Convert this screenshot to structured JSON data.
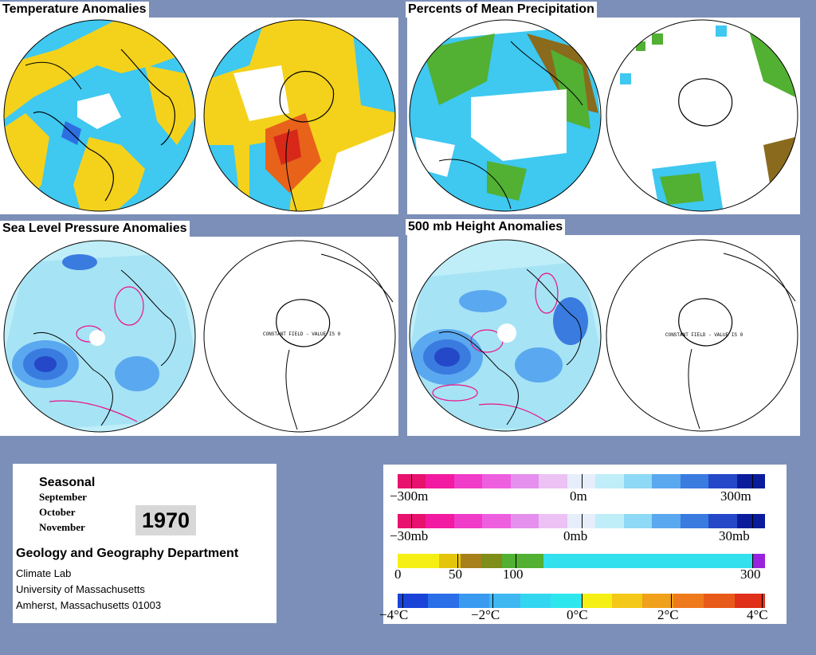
{
  "panels": {
    "temperature": {
      "title": "Temperature Anomalies"
    },
    "precipitation": {
      "title": "Percents of Mean Precipitation"
    },
    "slp": {
      "title": "Sea Level Pressure Anomalies",
      "constant_field": "CONSTANT FIELD - VALUE IS 0"
    },
    "height500": {
      "title": "500 mb Height Anomalies",
      "constant_field": "CONSTANT FIELD - VALUE IS 0"
    }
  },
  "info": {
    "heading": "Seasonal",
    "months": [
      "September",
      "October",
      "November"
    ],
    "year": "1970",
    "department": "Geology and Geography Department",
    "lab": "Climate Lab",
    "university": "University of Massachusetts",
    "address": "Amherst, Massachusetts 01003"
  },
  "legend": {
    "height": {
      "labels": [
        "−300m",
        "0m",
        "300m"
      ]
    },
    "pressure": {
      "labels": [
        "−30mb",
        "0mb",
        "30mb"
      ]
    },
    "precip": {
      "labels": [
        "0",
        "50",
        "100",
        "300"
      ]
    },
    "temp": {
      "labels": [
        "−4°C",
        "−2°C",
        "0°C",
        "2°C",
        "4°C"
      ]
    }
  },
  "colors": {
    "background": "#7b8fb8",
    "anomaly_blue": "#3fc8f0",
    "anomaly_yellow": "#f4d21c",
    "negative_pink": "#ee1188",
    "positive_navy": "#0a1c9c",
    "precip_green": "#52b033"
  }
}
